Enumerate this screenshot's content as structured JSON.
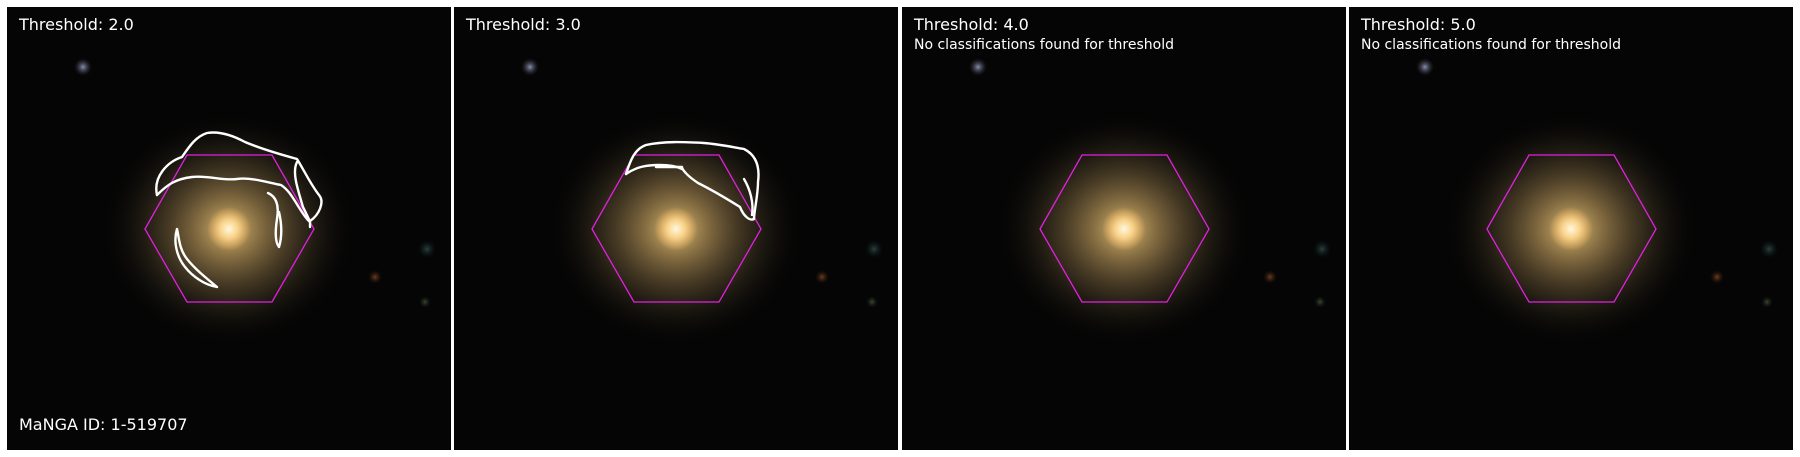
{
  "panels": [
    {
      "title": "Threshold: 2.0",
      "subtitle": "",
      "footer": "MaNGA ID: 1-519707",
      "has_contours": true
    },
    {
      "title": "Threshold: 3.0",
      "subtitle": "",
      "footer": "",
      "has_contours": true
    },
    {
      "title": "Threshold: 4.0",
      "subtitle": "No classifications found for threshold",
      "footer": "",
      "has_contours": false
    },
    {
      "title": "Threshold: 5.0",
      "subtitle": "No classifications found for threshold",
      "footer": "",
      "has_contours": false
    }
  ],
  "colors": {
    "background": "#050505",
    "hexagon": "#e020e0",
    "contour": "#ffffff",
    "galaxy_core": "#fff0c8",
    "galaxy_halo": "#c8aa64"
  }
}
